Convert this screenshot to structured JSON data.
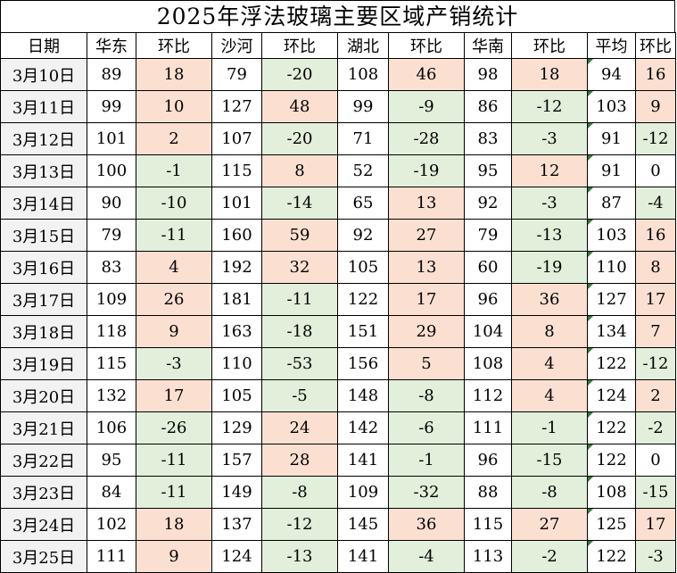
{
  "title": "2025年浮法玻璃主要区域产销统计",
  "headers": [
    "日期",
    "华东",
    "环比",
    "沙河",
    "环比",
    "湖北",
    "环比",
    "华南",
    "环比",
    "平均",
    "环比"
  ],
  "colors": {
    "positive_fill": "#fbe0d2",
    "negative_fill": "#e2efda",
    "high_value_text": "#e8231f",
    "date_fill": "#f2f2f2"
  },
  "rows": [
    {
      "date": "3月10日",
      "huadong": "89",
      "hd_chg": "18",
      "shahe": "79",
      "sh_chg": "-20",
      "hubei": "108",
      "hb_chg": "46",
      "huanan": "98",
      "hn_chg": "18",
      "avg": "94",
      "avg_chg": "16"
    },
    {
      "date": "3月11日",
      "huadong": "99",
      "hd_chg": "10",
      "shahe": "127",
      "sh_chg": "48",
      "hubei": "99",
      "hb_chg": "-9",
      "huanan": "86",
      "hn_chg": "-12",
      "avg": "103",
      "avg_chg": "9"
    },
    {
      "date": "3月12日",
      "huadong": "101",
      "hd_chg": "2",
      "shahe": "107",
      "sh_chg": "-20",
      "hubei": "71",
      "hb_chg": "-28",
      "huanan": "83",
      "hn_chg": "-3",
      "avg": "91",
      "avg_chg": "-12"
    },
    {
      "date": "3月13日",
      "huadong": "100",
      "hd_chg": "-1",
      "shahe": "115",
      "sh_chg": "8",
      "hubei": "52",
      "hb_chg": "-19",
      "huanan": "95",
      "hn_chg": "12",
      "avg": "91",
      "avg_chg": "0"
    },
    {
      "date": "3月14日",
      "huadong": "90",
      "hd_chg": "-10",
      "shahe": "101",
      "sh_chg": "-14",
      "hubei": "65",
      "hb_chg": "13",
      "huanan": "92",
      "hn_chg": "-3",
      "avg": "87",
      "avg_chg": "-4"
    },
    {
      "date": "3月15日",
      "huadong": "79",
      "hd_chg": "-11",
      "shahe": "160",
      "sh_chg": "59",
      "hubei": "92",
      "hb_chg": "27",
      "huanan": "79",
      "hn_chg": "-13",
      "avg": "103",
      "avg_chg": "16"
    },
    {
      "date": "3月16日",
      "huadong": "83",
      "hd_chg": "4",
      "shahe": "192",
      "sh_chg": "32",
      "hubei": "105",
      "hb_chg": "13",
      "huanan": "60",
      "hn_chg": "-19",
      "avg": "110",
      "avg_chg": "8"
    },
    {
      "date": "3月17日",
      "huadong": "109",
      "hd_chg": "26",
      "shahe": "181",
      "sh_chg": "-11",
      "hubei": "122",
      "hb_chg": "17",
      "huanan": "96",
      "hn_chg": "36",
      "avg": "127",
      "avg_chg": "17"
    },
    {
      "date": "3月18日",
      "huadong": "118",
      "hd_chg": "9",
      "shahe": "163",
      "sh_chg": "-18",
      "hubei": "151",
      "hb_chg": "29",
      "huanan": "104",
      "hn_chg": "8",
      "avg": "134",
      "avg_chg": "7"
    },
    {
      "date": "3月19日",
      "huadong": "115",
      "hd_chg": "-3",
      "shahe": "110",
      "sh_chg": "-53",
      "hubei": "156",
      "hb_chg": "5",
      "huanan": "108",
      "hn_chg": "4",
      "avg": "122",
      "avg_chg": "-12"
    },
    {
      "date": "3月20日",
      "huadong": "132",
      "hd_chg": "17",
      "shahe": "105",
      "sh_chg": "-5",
      "hubei": "148",
      "hb_chg": "-8",
      "huanan": "112",
      "hn_chg": "4",
      "avg": "124",
      "avg_chg": "2"
    },
    {
      "date": "3月21日",
      "huadong": "106",
      "hd_chg": "-26",
      "shahe": "129",
      "sh_chg": "24",
      "hubei": "142",
      "hb_chg": "-6",
      "huanan": "111",
      "hn_chg": "-1",
      "avg": "122",
      "avg_chg": "-2"
    },
    {
      "date": "3月22日",
      "huadong": "95",
      "hd_chg": "-11",
      "shahe": "157",
      "sh_chg": "28",
      "hubei": "141",
      "hb_chg": "-1",
      "huanan": "96",
      "hn_chg": "-15",
      "avg": "122",
      "avg_chg": "0"
    },
    {
      "date": "3月23日",
      "huadong": "84",
      "hd_chg": "-11",
      "shahe": "149",
      "sh_chg": "-8",
      "hubei": "109",
      "hb_chg": "-32",
      "huanan": "88",
      "hn_chg": "-8",
      "avg": "108",
      "avg_chg": "-15"
    },
    {
      "date": "3月24日",
      "huadong": "102",
      "hd_chg": "18",
      "shahe": "137",
      "sh_chg": "-12",
      "hubei": "145",
      "hb_chg": "36",
      "huanan": "115",
      "hn_chg": "27",
      "avg": "125",
      "avg_chg": "17"
    },
    {
      "date": "3月25日",
      "huadong": "111",
      "hd_chg": "9",
      "shahe": "124",
      "sh_chg": "-13",
      "hubei": "141",
      "hb_chg": "-4",
      "huanan": "113",
      "hn_chg": "-2",
      "avg": "122",
      "avg_chg": "-3"
    }
  ]
}
